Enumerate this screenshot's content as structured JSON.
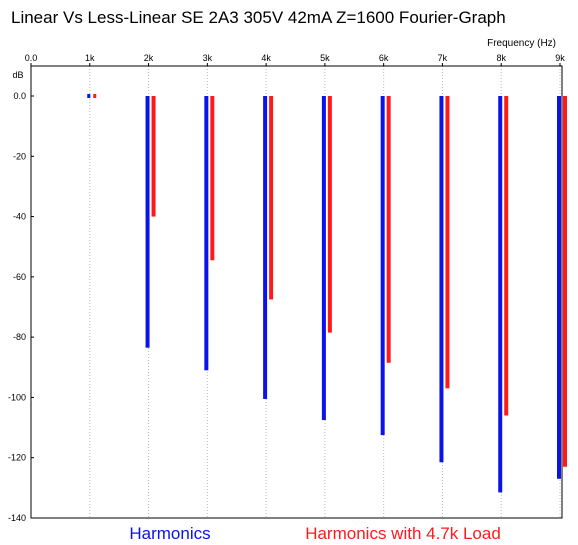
{
  "chart_data": {
    "type": "bar",
    "title": "Linear Vs Less-Linear SE 2A3 305V 42mA Z=1600 Fourier-Graph",
    "xlabel": "Frequency  (Hz)",
    "ylabel": "dB",
    "x_axis_position": "top",
    "xlim": [
      0,
      9000
    ],
    "ylim": [
      -140,
      8
    ],
    "x_ticks": [
      {
        "value": 0,
        "label": "0.0"
      },
      {
        "value": 1000,
        "label": "1k"
      },
      {
        "value": 2000,
        "label": "2k"
      },
      {
        "value": 3000,
        "label": "3k"
      },
      {
        "value": 4000,
        "label": "4k"
      },
      {
        "value": 5000,
        "label": "5k"
      },
      {
        "value": 6000,
        "label": "6k"
      },
      {
        "value": 7000,
        "label": "7k"
      },
      {
        "value": 8000,
        "label": "8k"
      },
      {
        "value": 9000,
        "label": "9k"
      }
    ],
    "y_ticks": [
      {
        "value": 0,
        "label": "0.0"
      },
      {
        "value": -20,
        "label": "-20"
      },
      {
        "value": -40,
        "label": "-40"
      },
      {
        "value": -60,
        "label": "-60"
      },
      {
        "value": -80,
        "label": "-80"
      },
      {
        "value": -100,
        "label": "-100"
      },
      {
        "value": -120,
        "label": "-120"
      },
      {
        "value": -140,
        "label": "-140"
      }
    ],
    "grid": {
      "vertical": true,
      "horizontal": false,
      "style": "dotted"
    },
    "legend_placement": "bottom",
    "series": [
      {
        "name": "Harmonics",
        "color": "#0a14e6",
        "x": [
          1000,
          2000,
          3000,
          4000,
          5000,
          6000,
          7000,
          8000,
          9000
        ],
        "values": [
          0,
          -83.5,
          -91,
          -100.5,
          -107.5,
          -112.5,
          -121.5,
          -131.5,
          -127
        ]
      },
      {
        "name": "Harmonics with 4.7k Load",
        "color": "#ff1a1a",
        "x": [
          1000,
          2000,
          3000,
          4000,
          5000,
          6000,
          7000,
          8000,
          9000
        ],
        "values": [
          0,
          -40,
          -54.5,
          -67.5,
          -78.5,
          -88.5,
          -97,
          -106,
          -123
        ]
      }
    ]
  }
}
